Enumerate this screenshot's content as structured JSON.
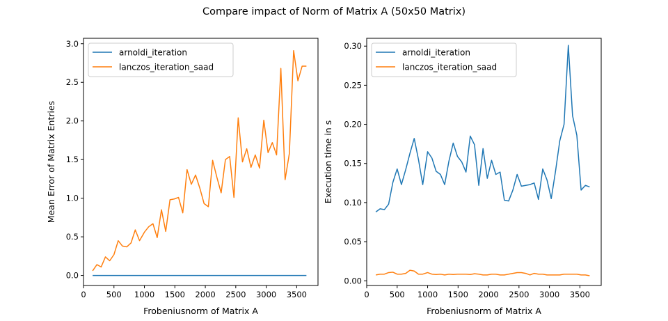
{
  "figure": {
    "title": "Compare impact  of Norm of Matrix A (50x50 Matrix)"
  },
  "colors": {
    "arnoldi": "#1f77b4",
    "lanczos": "#ff7f0e",
    "axis": "#000000",
    "legend_border": "#cccccc"
  },
  "chart_data": [
    {
      "type": "line",
      "title": "",
      "xlabel": "Frobeniusnorm of Matrix A",
      "ylabel": "Mean Error of Matrix Entries",
      "xlim": [
        0,
        3850
      ],
      "ylim": [
        -0.13,
        3.07
      ],
      "xticks": [
        0,
        500,
        1000,
        1500,
        2000,
        2500,
        3000,
        3500
      ],
      "xtick_labels": [
        "0",
        "500",
        "1000",
        "1500",
        "2000",
        "2500",
        "3000",
        "3500"
      ],
      "yticks": [
        0.0,
        0.5,
        1.0,
        1.5,
        2.0,
        2.5,
        3.0
      ],
      "ytick_labels": [
        "0.0",
        "0.5",
        "1.0",
        "1.5",
        "2.0",
        "2.5",
        "3.0"
      ],
      "legend_position": "upper-left",
      "grid": false,
      "x": [
        150,
        220,
        290,
        360,
        430,
        500,
        570,
        640,
        710,
        780,
        850,
        920,
        1000,
        1070,
        1140,
        1210,
        1280,
        1350,
        1420,
        1490,
        1560,
        1630,
        1700,
        1770,
        1840,
        1910,
        1980,
        2050,
        2120,
        2190,
        2260,
        2330,
        2400,
        2470,
        2540,
        2610,
        2680,
        2750,
        2820,
        2890,
        2960,
        3030,
        3100,
        3170,
        3240,
        3310,
        3380,
        3450,
        3520,
        3590,
        3660
      ],
      "series": [
        {
          "name": "arnoldi_iteration",
          "color_key": "arnoldi",
          "values": [
            0,
            0,
            0,
            0,
            0,
            0,
            0,
            0,
            0,
            0,
            0,
            0,
            0,
            0,
            0,
            0,
            0,
            0,
            0,
            0,
            0,
            0,
            0,
            0,
            0,
            0,
            0,
            0,
            0,
            0,
            0,
            0,
            0,
            0,
            0,
            0,
            0,
            0,
            0,
            0,
            0,
            0,
            0,
            0,
            0,
            0,
            0,
            0,
            0,
            0,
            0
          ]
        },
        {
          "name": "lanczos_iteration_saad",
          "color_key": "lanczos",
          "values": [
            0.06,
            0.14,
            0.11,
            0.24,
            0.19,
            0.27,
            0.45,
            0.38,
            0.37,
            0.42,
            0.59,
            0.45,
            0.56,
            0.63,
            0.67,
            0.49,
            0.85,
            0.57,
            0.98,
            0.99,
            1.01,
            0.81,
            1.37,
            1.18,
            1.3,
            1.13,
            0.93,
            0.89,
            1.49,
            1.27,
            1.07,
            1.5,
            1.54,
            1.01,
            2.04,
            1.47,
            1.64,
            1.4,
            1.56,
            1.39,
            2.01,
            1.59,
            1.72,
            1.56,
            2.68,
            1.24,
            1.58,
            2.91,
            2.52,
            2.71,
            2.71
          ]
        }
      ]
    },
    {
      "type": "line",
      "title": "",
      "xlabel": "Frobeniusnorm of Matrix A",
      "ylabel": "Execution time in s",
      "xlim": [
        0,
        3850
      ],
      "ylim": [
        -0.006,
        0.31
      ],
      "xticks": [
        0,
        500,
        1000,
        1500,
        2000,
        2500,
        3000,
        3500
      ],
      "xtick_labels": [
        "0",
        "500",
        "1000",
        "1500",
        "2000",
        "2500",
        "3000",
        "3500"
      ],
      "yticks": [
        0.0,
        0.05,
        0.1,
        0.15,
        0.2,
        0.25,
        0.3
      ],
      "ytick_labels": [
        "0.00",
        "0.05",
        "0.10",
        "0.15",
        "0.20",
        "0.25",
        "0.30"
      ],
      "legend_position": "upper-left",
      "grid": false,
      "x": [
        150,
        220,
        290,
        360,
        430,
        500,
        570,
        640,
        710,
        780,
        850,
        920,
        1000,
        1070,
        1140,
        1210,
        1280,
        1350,
        1420,
        1490,
        1560,
        1630,
        1700,
        1770,
        1840,
        1910,
        1980,
        2050,
        2120,
        2190,
        2260,
        2330,
        2400,
        2470,
        2540,
        2610,
        2680,
        2750,
        2820,
        2890,
        2960,
        3030,
        3100,
        3170,
        3240,
        3310,
        3380,
        3450,
        3520,
        3590,
        3660
      ],
      "series": [
        {
          "name": "arnoldi_iteration",
          "color_key": "arnoldi",
          "values": [
            0.088,
            0.092,
            0.091,
            0.098,
            0.126,
            0.143,
            0.123,
            0.142,
            0.163,
            0.182,
            0.155,
            0.123,
            0.165,
            0.157,
            0.14,
            0.136,
            0.123,
            0.153,
            0.176,
            0.159,
            0.152,
            0.139,
            0.185,
            0.174,
            0.122,
            0.169,
            0.131,
            0.154,
            0.136,
            0.139,
            0.103,
            0.102,
            0.116,
            0.136,
            0.121,
            0.122,
            0.123,
            0.125,
            0.104,
            0.143,
            0.129,
            0.105,
            0.14,
            0.179,
            0.2,
            0.301,
            0.211,
            0.186,
            0.116,
            0.122,
            0.12
          ]
        },
        {
          "name": "lanczos_iteration_saad",
          "color_key": "lanczos",
          "values": [
            0.0075,
            0.0085,
            0.0085,
            0.0105,
            0.011,
            0.0085,
            0.0085,
            0.0095,
            0.0135,
            0.0125,
            0.0085,
            0.0085,
            0.0105,
            0.0085,
            0.008,
            0.0085,
            0.0075,
            0.0085,
            0.008,
            0.0085,
            0.0085,
            0.0085,
            0.008,
            0.009,
            0.0085,
            0.0075,
            0.0075,
            0.0085,
            0.0085,
            0.0075,
            0.0075,
            0.0085,
            0.0095,
            0.0105,
            0.0105,
            0.0095,
            0.0075,
            0.0095,
            0.0085,
            0.0085,
            0.0075,
            0.0075,
            0.0075,
            0.0075,
            0.0085,
            0.0085,
            0.0085,
            0.0085,
            0.0075,
            0.0075,
            0.0065
          ]
        }
      ]
    }
  ]
}
